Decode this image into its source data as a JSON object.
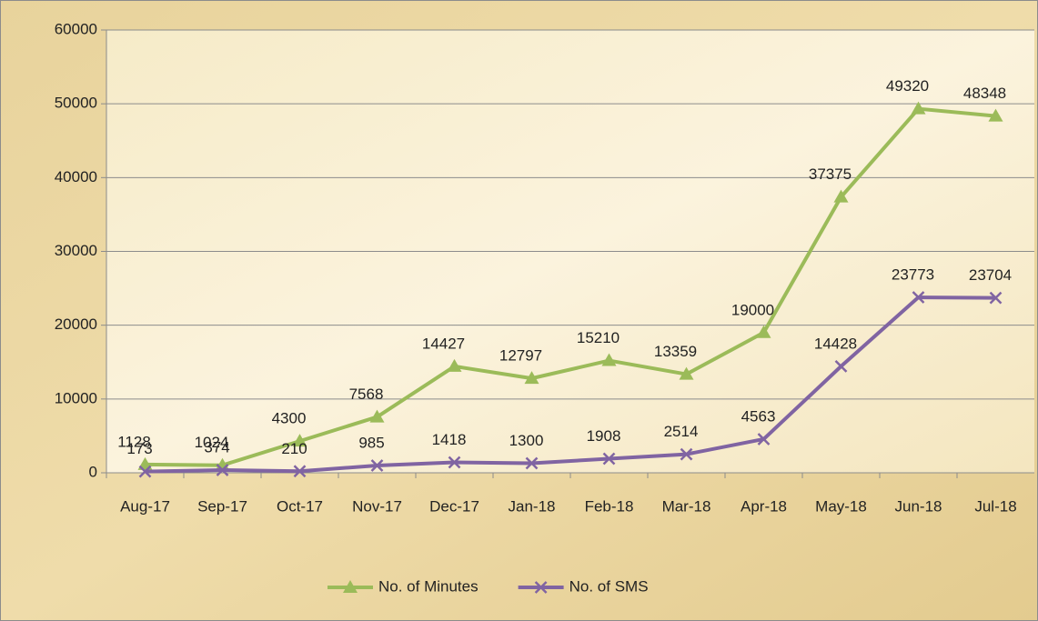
{
  "chart_data": {
    "type": "line",
    "categories": [
      "Aug-17",
      "Sep-17",
      "Oct-17",
      "Nov-17",
      "Dec-17",
      "Jan-18",
      "Feb-18",
      "Mar-18",
      "Apr-18",
      "May-18",
      "Jun-18",
      "Jul-18"
    ],
    "series": [
      {
        "name": "No. of Minutes",
        "color": "#9bbb59",
        "marker": "triangle",
        "values": [
          1128,
          1024,
          4300,
          7568,
          14427,
          12797,
          15210,
          13359,
          19000,
          37375,
          49320,
          48348
        ]
      },
      {
        "name": "No. of SMS",
        "color": "#8064a2",
        "marker": "x",
        "values": [
          173,
          374,
          210,
          985,
          1418,
          1300,
          1908,
          2514,
          4563,
          14428,
          23773,
          23704
        ]
      }
    ],
    "ylim": [
      0,
      60000
    ],
    "yticks": [
      0,
      10000,
      20000,
      30000,
      40000,
      50000,
      60000
    ],
    "grid": true,
    "legend": "bottom"
  }
}
